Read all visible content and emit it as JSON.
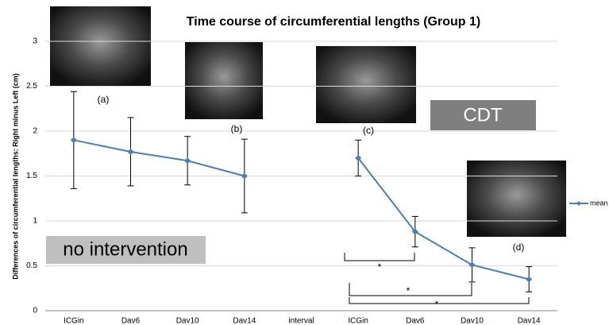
{
  "chart_data": {
    "type": "line",
    "title": "Time course of circumferential lengths (Group 1)",
    "y_label": "Differences of circumferential lengths: Right minus Left (cm)",
    "categories": [
      "ICGin",
      "Dav6",
      "Dav10",
      "Dav14",
      "interval",
      "ICGin",
      "Dav6",
      "Dav10",
      "Dav14"
    ],
    "series": [
      {
        "name": "mean",
        "color": "#4a7ebb",
        "values": [
          1.9,
          1.77,
          1.67,
          1.5,
          null,
          1.7,
          0.88,
          0.51,
          0.35
        ],
        "errors": [
          0.54,
          0.38,
          0.27,
          0.41,
          null,
          0.2,
          0.17,
          0.19,
          0.14
        ]
      }
    ],
    "ylim": [
      0,
      3
    ],
    "yticks": [
      0,
      0.5,
      1,
      1.5,
      2,
      2.5,
      3
    ],
    "grid": true,
    "legend": "right",
    "annotations": [
      "(a)",
      "(b)",
      "(c)",
      "(d)",
      "CDT",
      "no intervention",
      "*",
      "*",
      "*"
    ]
  }
}
